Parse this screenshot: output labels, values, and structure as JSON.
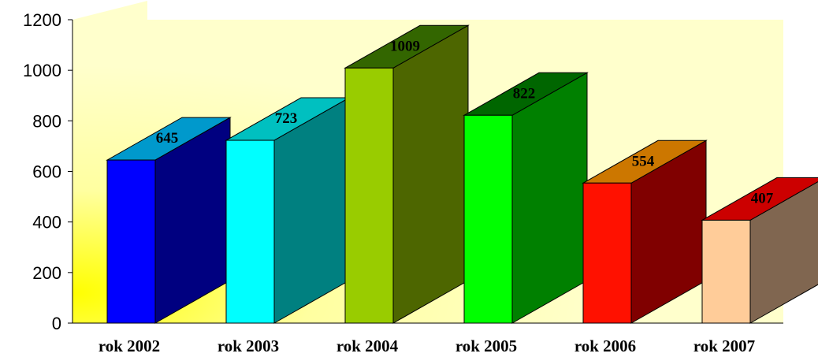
{
  "chart_data": {
    "type": "bar",
    "style": "3d-column",
    "categories": [
      "rok 2002",
      "rok 2003",
      "rok 2004",
      "rok 2005",
      "rok 2006",
      "rok 2007"
    ],
    "values": [
      645,
      723,
      1009,
      822,
      554,
      407
    ],
    "data_labels": [
      "645",
      "723",
      "1009",
      "822",
      "554",
      "407"
    ],
    "ylim": [
      0,
      1200
    ],
    "yticks": [
      "0",
      "200",
      "400",
      "600",
      "800",
      "1000",
      "1200"
    ],
    "grid": false,
    "legend": "none",
    "colors": {
      "plot_background": "#ffffcc",
      "plot_glow": "#ffff00",
      "bars": [
        {
          "front": "#0000ff",
          "side": "#000080",
          "top": "#0099cc"
        },
        {
          "front": "#00ffff",
          "side": "#008080",
          "top": "#00c0c0"
        },
        {
          "front": "#99cc00",
          "side": "#4d6600",
          "top": "#336600"
        },
        {
          "front": "#00ff00",
          "side": "#008000",
          "top": "#006600"
        },
        {
          "front": "#ff1100",
          "side": "#800000",
          "top": "#cc7700"
        },
        {
          "front": "#ffcc99",
          "side": "#806650",
          "top": "#cc0000"
        }
      ]
    }
  }
}
